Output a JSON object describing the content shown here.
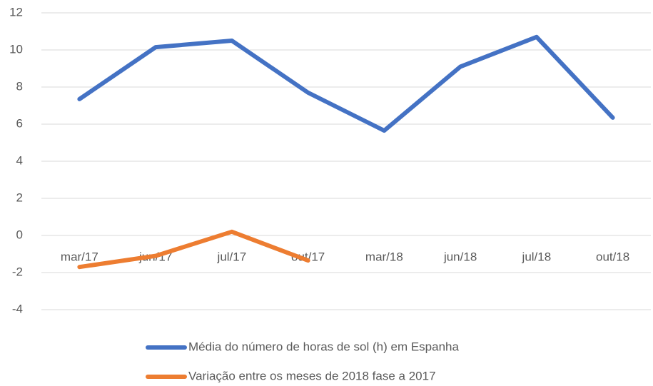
{
  "chart_data": {
    "type": "line",
    "categories": [
      "mar/17",
      "jun/17",
      "jul/17",
      "out/17",
      "mar/18",
      "jun/18",
      "jul/18",
      "out/18"
    ],
    "series": [
      {
        "name": "Média do número de horas de sol (h) em Espanha",
        "color": "#4472c4",
        "values": [
          7.35,
          10.15,
          10.5,
          7.7,
          5.65,
          9.1,
          10.7,
          6.35
        ]
      },
      {
        "name": "Variação entre os meses de 2018 fase a 2017",
        "color": "#ed7d31",
        "values": [
          -1.7,
          -1.1,
          0.2,
          -1.35,
          null,
          null,
          null,
          null
        ]
      }
    ],
    "ylim": [
      -4,
      12
    ],
    "yticks": [
      -4,
      -2,
      0,
      2,
      4,
      6,
      8,
      10,
      12
    ],
    "grid": true
  }
}
